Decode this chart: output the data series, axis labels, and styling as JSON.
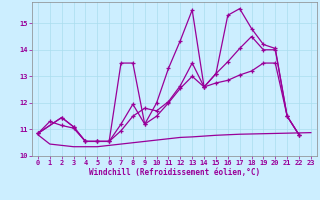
{
  "xlabel": "Windchill (Refroidissement éolien,°C)",
  "bg_color": "#cceeff",
  "line_color": "#990099",
  "grid_color": "#aaddee",
  "xlim": [
    -0.5,
    23.5
  ],
  "ylim": [
    10,
    15.8
  ],
  "yticks": [
    10,
    11,
    12,
    13,
    14,
    15
  ],
  "xticks": [
    0,
    1,
    2,
    3,
    4,
    5,
    6,
    7,
    8,
    9,
    10,
    11,
    12,
    13,
    14,
    15,
    16,
    17,
    18,
    19,
    20,
    21,
    22,
    23
  ],
  "series": [
    {
      "x": [
        0,
        1,
        2,
        3,
        4,
        5,
        6,
        7,
        8,
        9,
        10,
        11,
        12,
        13,
        14,
        15,
        16,
        17,
        18,
        19,
        20,
        21,
        22,
        23
      ],
      "y": [
        10.8,
        10.45,
        10.4,
        10.35,
        10.35,
        10.35,
        10.4,
        10.45,
        10.5,
        10.55,
        10.6,
        10.65,
        10.7,
        10.72,
        10.75,
        10.78,
        10.8,
        10.82,
        10.83,
        10.84,
        10.85,
        10.86,
        10.87,
        10.88
      ],
      "marker": false
    },
    {
      "x": [
        0,
        1,
        2,
        3,
        4,
        5,
        6,
        7,
        8,
        9,
        10,
        11,
        12,
        13,
        14,
        15,
        16,
        17,
        18,
        19,
        20,
        21,
        22
      ],
      "y": [
        10.85,
        11.3,
        11.15,
        11.05,
        10.55,
        10.55,
        10.55,
        11.2,
        11.95,
        11.2,
        11.5,
        12.0,
        12.55,
        13.0,
        12.6,
        12.75,
        12.85,
        13.05,
        13.2,
        13.5,
        13.5,
        11.5,
        10.8
      ],
      "marker": true
    },
    {
      "x": [
        0,
        2,
        3,
        4,
        5,
        6,
        7,
        8,
        9,
        10,
        11,
        12,
        13,
        14,
        15,
        16,
        17,
        18,
        19,
        20,
        21,
        22
      ],
      "y": [
        10.85,
        11.45,
        11.1,
        10.55,
        10.55,
        10.55,
        10.95,
        11.5,
        11.8,
        11.7,
        12.05,
        12.65,
        13.5,
        12.6,
        13.1,
        13.55,
        14.05,
        14.5,
        14.0,
        14.0,
        11.5,
        10.8
      ],
      "marker": true
    },
    {
      "x": [
        0,
        2,
        3,
        4,
        5,
        6,
        7,
        8,
        9,
        10,
        11,
        12,
        13,
        14,
        15,
        16,
        17,
        18,
        19,
        20,
        21,
        22
      ],
      "y": [
        10.85,
        11.45,
        11.1,
        10.55,
        10.55,
        10.55,
        13.5,
        13.5,
        11.2,
        12.0,
        13.3,
        14.35,
        15.5,
        12.6,
        13.1,
        15.3,
        15.55,
        14.8,
        14.2,
        14.05,
        11.5,
        10.8
      ],
      "marker": true
    }
  ]
}
